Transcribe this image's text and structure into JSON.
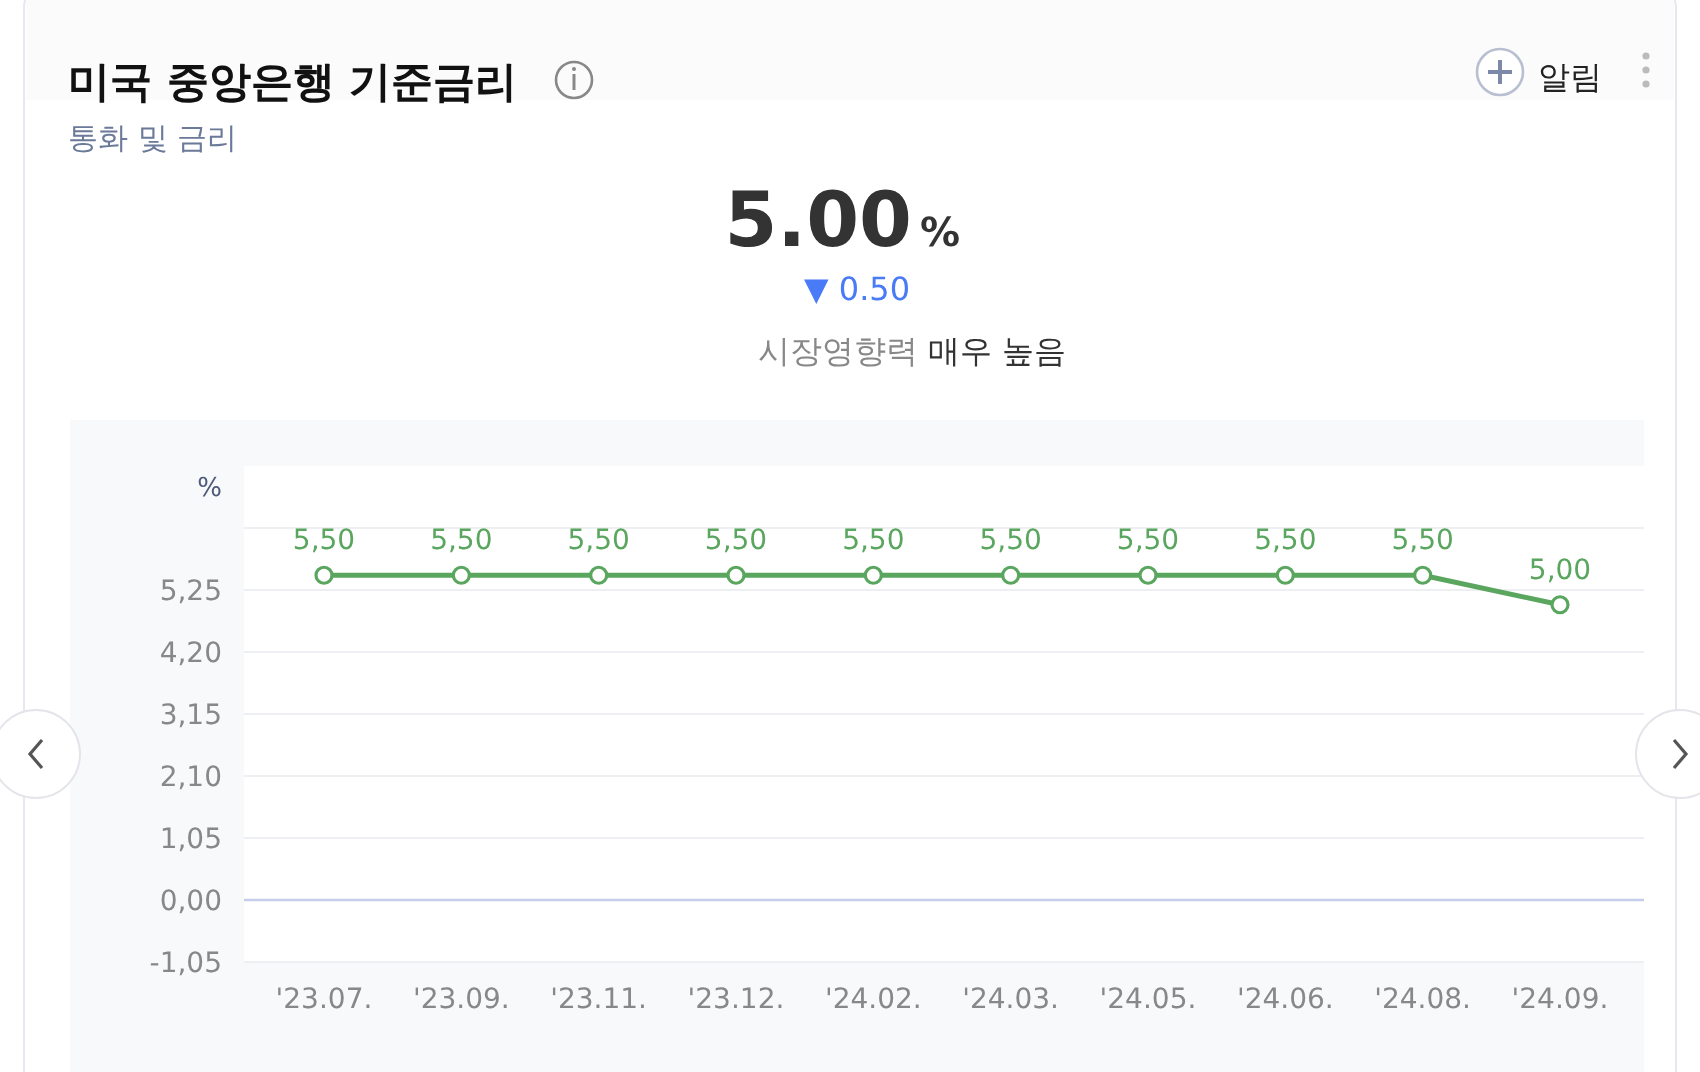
{
  "chart_data": {
    "type": "line",
    "title": "미국 중앙은행 기준금리",
    "subtitle": "통화 및 금리",
    "annotations": [
      "5.00",
      "%",
      "▼ 0.50",
      "시장영향력",
      "매우 높음",
      "알림"
    ],
    "ylabel": "%",
    "categories": [
      "'23.07.",
      "'23.09.",
      "'23.11.",
      "'23.12.",
      "'24.02.",
      "'24.03.",
      "'24.05.",
      "'24.06.",
      "'24.08.",
      "'24.09."
    ],
    "series": [
      {
        "color": "#5aa65f",
        "values": [
          5.5,
          5.5,
          5.5,
          5.5,
          5.5,
          5.5,
          5.5,
          5.5,
          5.5,
          5.0
        ],
        "value_labels": [
          "5,50",
          "5,50",
          "5,50",
          "5,50",
          "5,50",
          "5,50",
          "5,50",
          "5,50",
          "5,50",
          "5,00"
        ]
      }
    ],
    "ylim": [
      -1.05,
      7.35
    ],
    "yticks": [
      {
        "value": -1.05,
        "label": "-1,05"
      },
      {
        "value": 0,
        "label": "0,00"
      },
      {
        "value": 1.05,
        "label": "1,05"
      },
      {
        "value": 2.1,
        "label": "2,10"
      },
      {
        "value": 3.15,
        "label": "3,15"
      },
      {
        "value": 4.2,
        "label": "4,20"
      },
      {
        "value": 5.25,
        "label": "5,25"
      },
      {
        "value": 6.3,
        "label": null
      }
    ],
    "ref_lines": [
      {
        "axis": "y",
        "value": 0,
        "color": "#c5cdea"
      }
    ],
    "grid": "y",
    "marker": "circle",
    "line_style": "solid"
  }
}
